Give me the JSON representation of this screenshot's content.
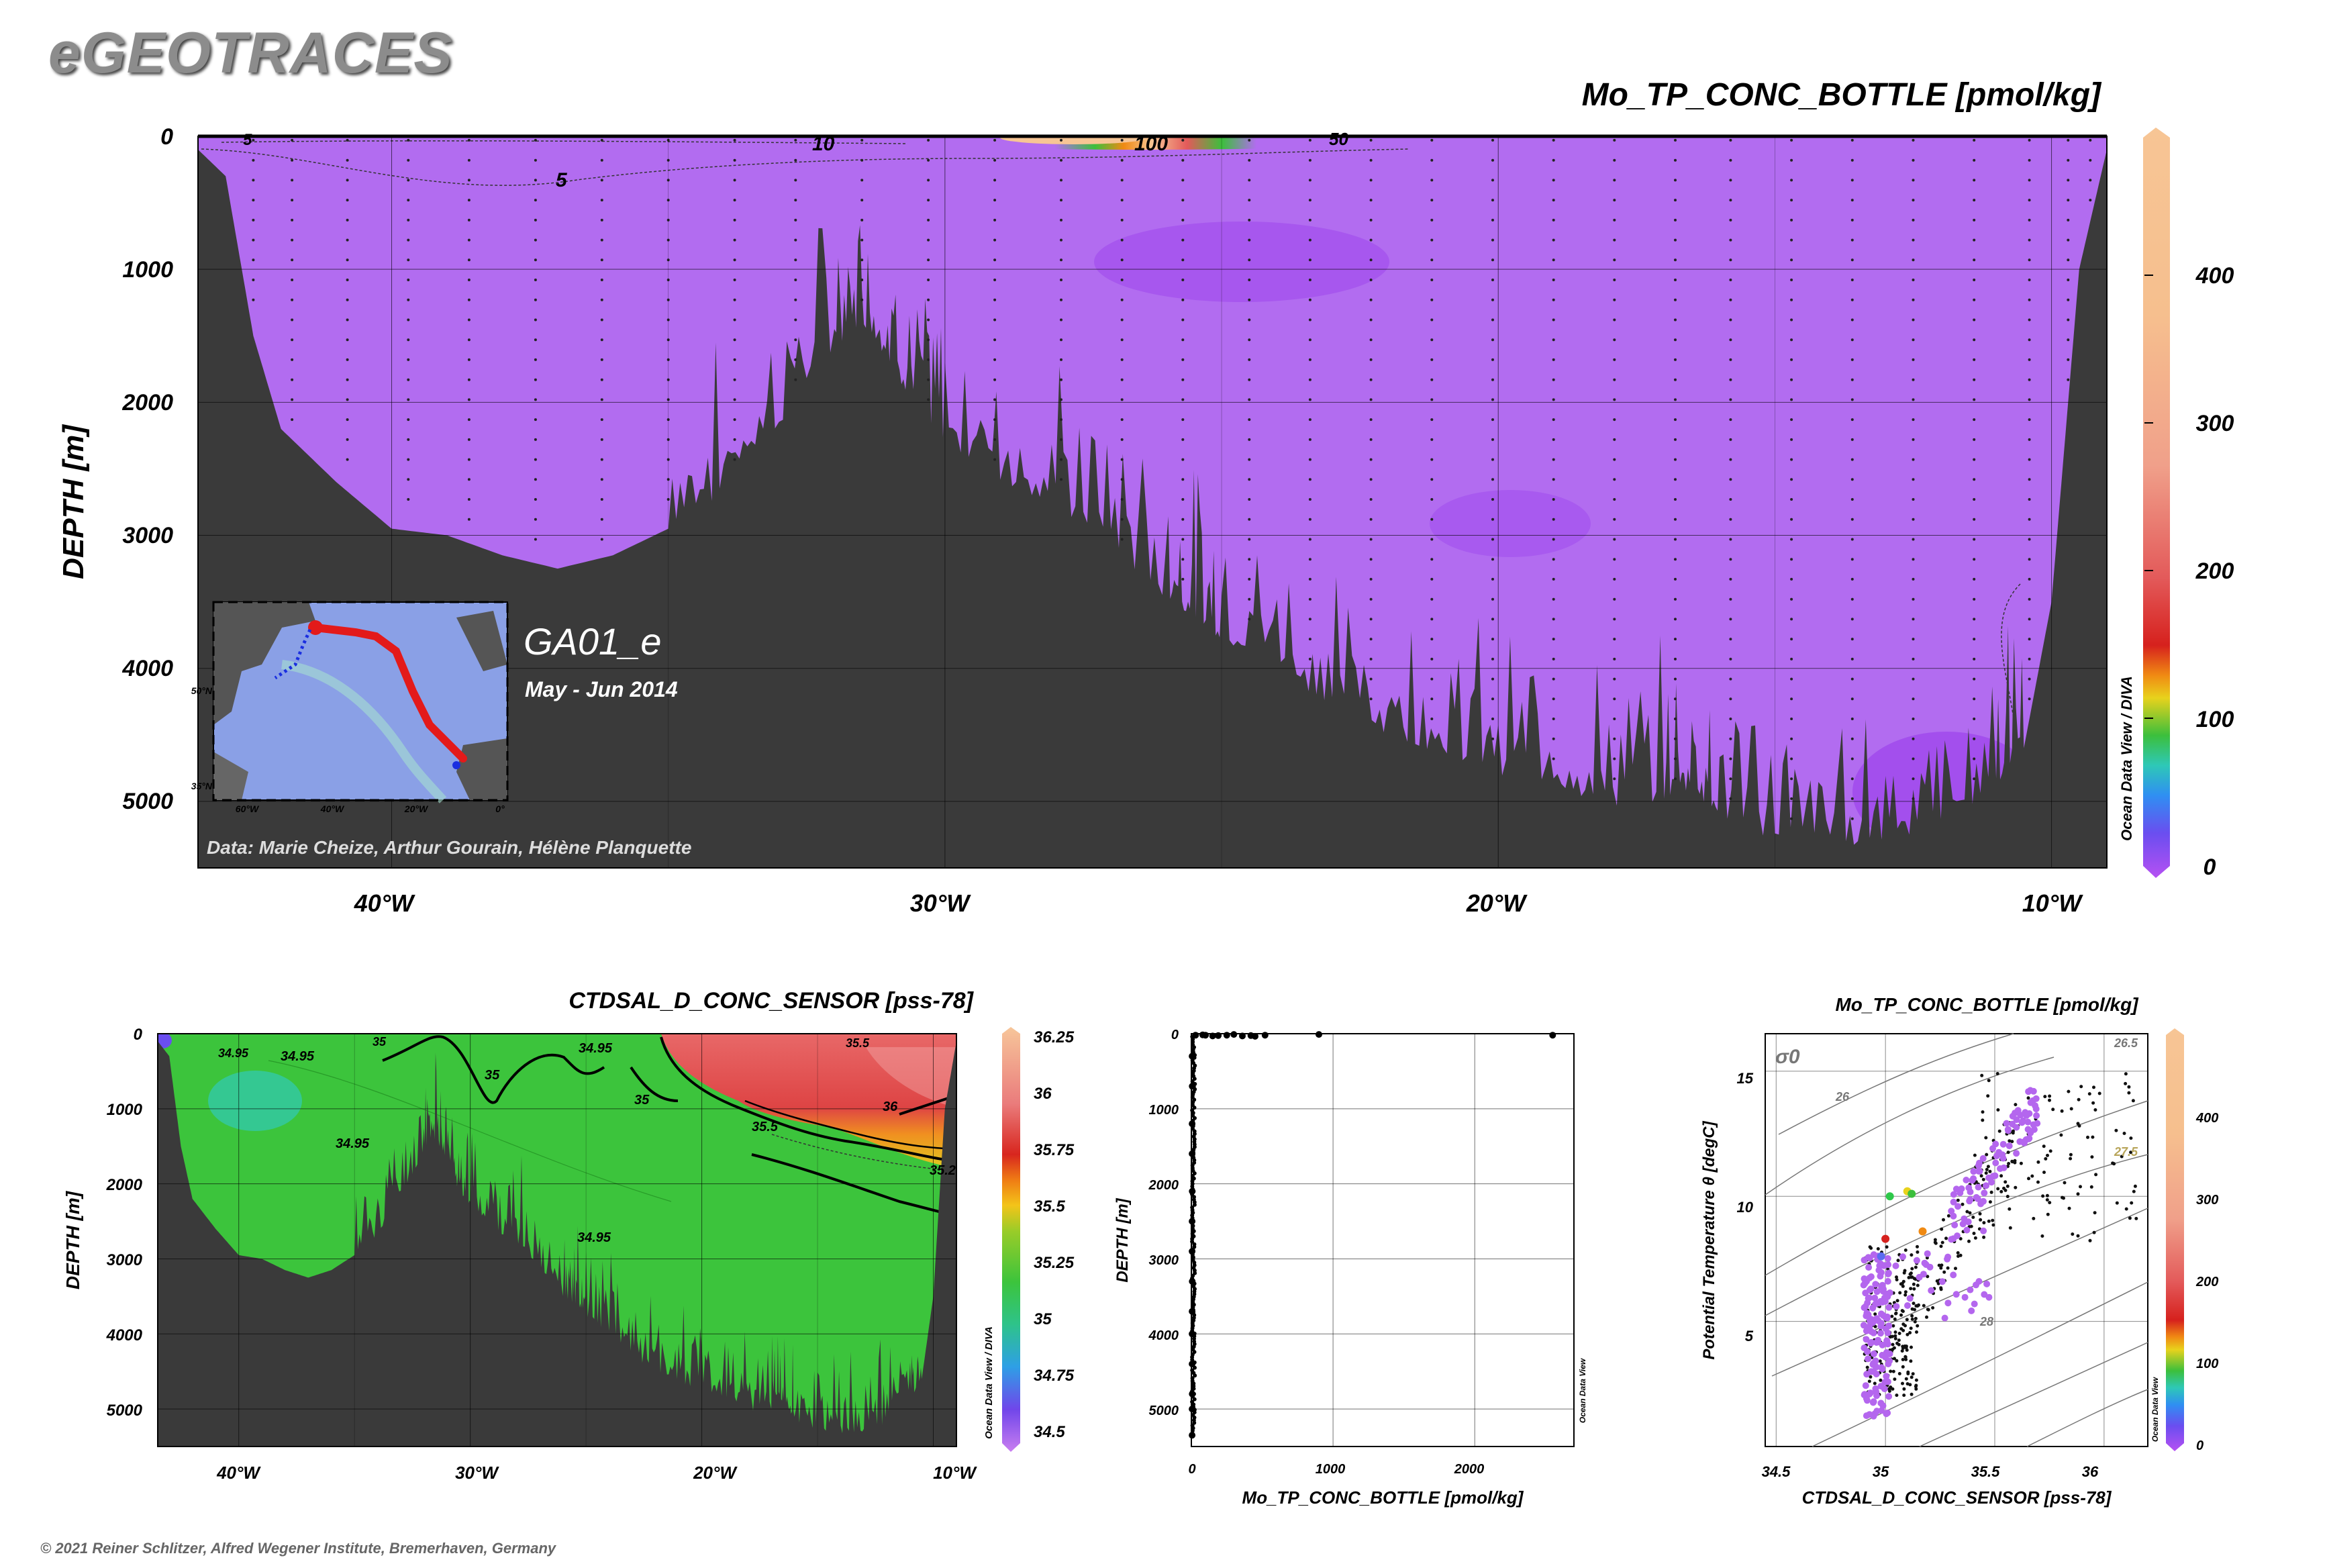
{
  "header": {
    "logo": "eGEOTRACES",
    "copyright": "© 2021 Reiner Schlitzer, Alfred Wegener Institute, Bremerhaven, Germany"
  },
  "colors": {
    "bathymetry": "#3a3a3a",
    "field_main": "#b26cf0",
    "field_deep": "#a452ee",
    "salinity_field": "#3cc43c",
    "salinity_high": "#e35353",
    "sample_dots": "#000000"
  },
  "main_section": {
    "title": "Mo_TP_CONC_BOTTLE [pmol/kg]",
    "ylabel": "DEPTH [m]",
    "yticks": [
      "0",
      "1000",
      "2000",
      "3000",
      "4000",
      "5000"
    ],
    "xticks": [
      "40°W",
      "30°W",
      "20°W",
      "10°W"
    ],
    "colorbar_ticks": [
      "0",
      "100",
      "200",
      "300",
      "400"
    ],
    "colorbar_credit": "Ocean Data View / DIVA",
    "contour_labels": [
      "10",
      "5",
      "100",
      "50",
      "5"
    ],
    "cruise": "GA01_e",
    "dates": "May - Jun 2014",
    "credit": "Data: Marie Cheize, Arthur Gourain, Hélène Planquette",
    "map_labels": [
      "60°W",
      "40°W",
      "20°W",
      "0°",
      "50°N",
      "35°N"
    ]
  },
  "salinity_section": {
    "title": "CTDSAL_D_CONC_SENSOR [pss-78]",
    "ylabel": "DEPTH [m]",
    "yticks": [
      "0",
      "1000",
      "2000",
      "3000",
      "4000",
      "5000"
    ],
    "xticks": [
      "40°W",
      "30°W",
      "20°W",
      "10°W"
    ],
    "colorbar_ticks": [
      "36.25",
      "36",
      "35.75",
      "35.5",
      "35.25",
      "35",
      "34.75",
      "34.5"
    ],
    "colorbar_credit": "Ocean Data View / DIVA",
    "contour_labels": [
      "34.95",
      "34.95",
      "35",
      "34.95",
      "35",
      "35",
      "35.5",
      "36",
      "35.2",
      "34.95",
      "34.95",
      "35.5"
    ]
  },
  "profile_plot": {
    "xlabel": "Mo_TP_CONC_BOTTLE [pmol/kg]",
    "ylabel": "DEPTH [m]",
    "xticks": [
      "0",
      "1000",
      "2000"
    ],
    "yticks": [
      "0",
      "1000",
      "2000",
      "3000",
      "4000",
      "5000"
    ],
    "credit": "Ocean Data View"
  },
  "ts_plot": {
    "title": "Mo_TP_CONC_BOTTLE [pmol/kg]",
    "xlabel": "CTDSAL_D_CONC_SENSOR [pss-78]",
    "ylabel": "Potential Temperature θ [degC]",
    "xticks": [
      "34.5",
      "35",
      "35.5",
      "36"
    ],
    "yticks": [
      "5",
      "10",
      "15"
    ],
    "sigma_label": "σ0",
    "isopycnal_labels": [
      "26.5",
      "26",
      "27.5",
      "28"
    ],
    "colorbar_ticks": [
      "0",
      "100",
      "200",
      "300",
      "400"
    ],
    "colorbar_credit": "Ocean Data View"
  },
  "chart_data": [
    {
      "type": "heatmap",
      "title": "Mo_TP_CONC_BOTTLE [pmol/kg]",
      "ylabel": "DEPTH [m]",
      "xlim": [
        -43.5,
        -9
      ],
      "ylim": [
        5500,
        0
      ],
      "colorbar_range": [
        0,
        500
      ],
      "description_values": {
        "typical_interior_value": 5,
        "surface_max_contour": 100
      },
      "contours": [
        10,
        5,
        100,
        50
      ],
      "bathymetry": {
        "lon": [
          -43.5,
          -43,
          -42.5,
          -42,
          -41,
          -40,
          -39,
          -38,
          -37,
          -36,
          -35,
          -34,
          -33,
          -32,
          -31.5,
          -31,
          -30.5,
          -30,
          -29,
          -28,
          -27,
          -26,
          -25.5,
          -25,
          -24,
          -23,
          -22,
          -21,
          -20,
          -19,
          -18,
          -17,
          -16.5,
          -16,
          -15,
          -14,
          -13,
          -12,
          -11,
          -10.5,
          -10,
          -9.5,
          -9
        ],
        "depth": [
          100,
          300,
          1500,
          2200,
          2600,
          2950,
          3000,
          3150,
          3250,
          3150,
          2950,
          2700,
          2200,
          1600,
          1400,
          1700,
          2100,
          2300,
          2600,
          2800,
          3100,
          3500,
          3600,
          3800,
          4000,
          4300,
          4500,
          4650,
          4800,
          4900,
          5050,
          5000,
          4900,
          5150,
          5300,
          5350,
          5300,
          5200,
          4900,
          4600,
          3500,
          1000,
          100
        ]
      }
    },
    {
      "type": "heatmap",
      "title": "CTDSAL_D_CONC_SENSOR [pss-78]",
      "ylabel": "DEPTH [m]",
      "xlim": [
        -43.5,
        -9
      ],
      "ylim": [
        5500,
        0
      ],
      "colorbar_range": [
        34.4,
        36.3
      ],
      "contours": [
        34.95,
        35,
        35.2,
        35.5,
        36
      ]
    },
    {
      "type": "scatter",
      "xlabel": "Mo_TP_CONC_BOTTLE [pmol/kg]",
      "ylabel": "DEPTH [m]",
      "xlim": [
        0,
        2700
      ],
      "ylim": [
        5500,
        0
      ],
      "points": [
        [
          30,
          20
        ],
        [
          80,
          15
        ],
        [
          100,
          20
        ],
        [
          150,
          30
        ],
        [
          190,
          25
        ],
        [
          250,
          20
        ],
        [
          300,
          10
        ],
        [
          360,
          30
        ],
        [
          420,
          25
        ],
        [
          450,
          35
        ],
        [
          520,
          20
        ],
        [
          900,
          10
        ],
        [
          2550,
          20
        ],
        [
          5,
          300
        ],
        [
          6,
          700
        ],
        [
          5,
          1200
        ],
        [
          5,
          1600
        ],
        [
          6,
          2100
        ],
        [
          5,
          2500
        ],
        [
          5,
          2900
        ],
        [
          6,
          3300
        ],
        [
          5,
          3700
        ],
        [
          5,
          4000
        ],
        [
          5,
          4400
        ],
        [
          6,
          4800
        ],
        [
          5,
          5000
        ],
        [
          5,
          5350
        ]
      ]
    },
    {
      "type": "scatter",
      "xlabel": "CTDSAL_D_CONC_SENSOR [pss-78]",
      "ylabel": "Potential Temperature θ [degC]",
      "xlim": [
        34.45,
        36.2
      ],
      "ylim": [
        0,
        16.5
      ],
      "colorbar_range": [
        0,
        500
      ],
      "isopycnals": [
        26,
        26.5,
        27.5,
        28
      ]
    }
  ]
}
